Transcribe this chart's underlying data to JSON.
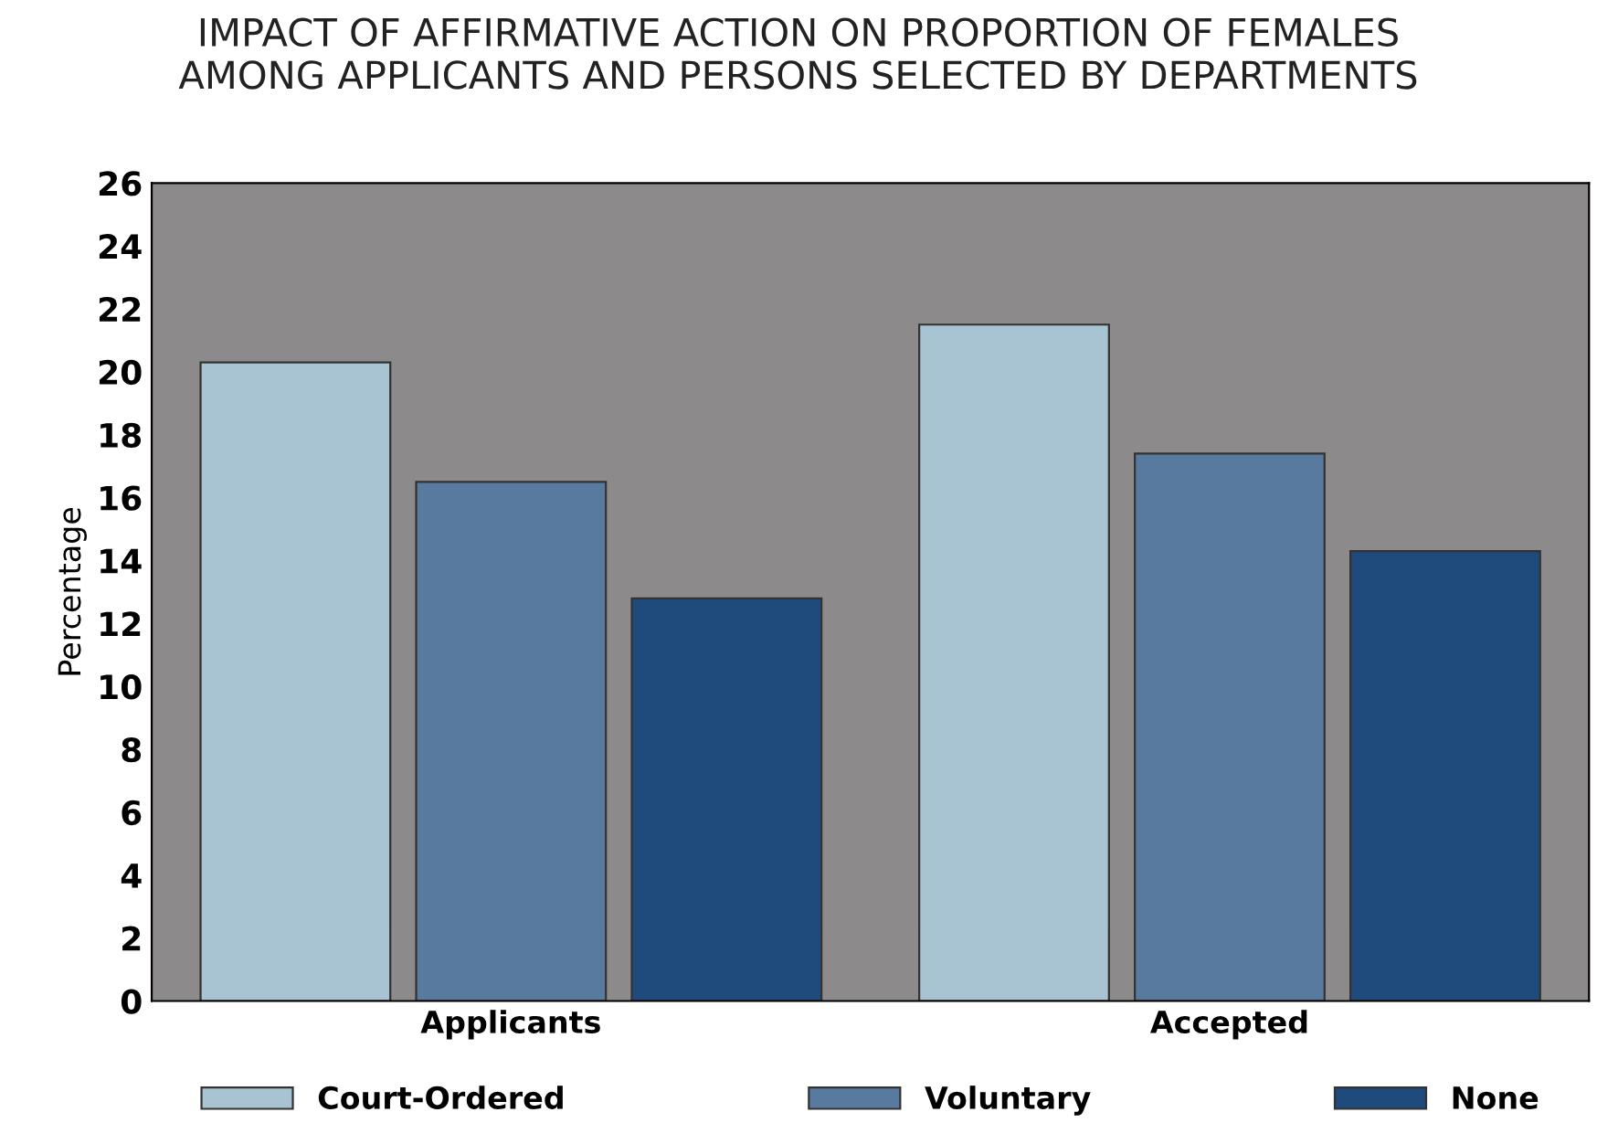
{
  "chart_data": {
    "type": "bar",
    "title": "IMPACT OF AFFIRMATIVE ACTION ON PROPORTION OF FEMALES\nAMONG APPLICANTS AND PERSONS SELECTED BY DEPARTMENTS",
    "ylabel": "Percentage",
    "categories": [
      "Applicants",
      "Accepted"
    ],
    "series": [
      {
        "name": "Court-Ordered",
        "color": "#a8c4d2",
        "values": [
          20.3,
          21.5
        ]
      },
      {
        "name": "Voluntary",
        "color": "#587a9e",
        "values": [
          16.5,
          17.4
        ]
      },
      {
        "name": "None",
        "color": "#1e4a7c",
        "values": [
          12.8,
          14.3
        ]
      }
    ],
    "ylim": [
      0,
      26
    ],
    "yticks": [
      0,
      2,
      4,
      6,
      8,
      10,
      12,
      14,
      16,
      18,
      20,
      22,
      24,
      26
    ],
    "grid": false,
    "legend": "bottom"
  }
}
